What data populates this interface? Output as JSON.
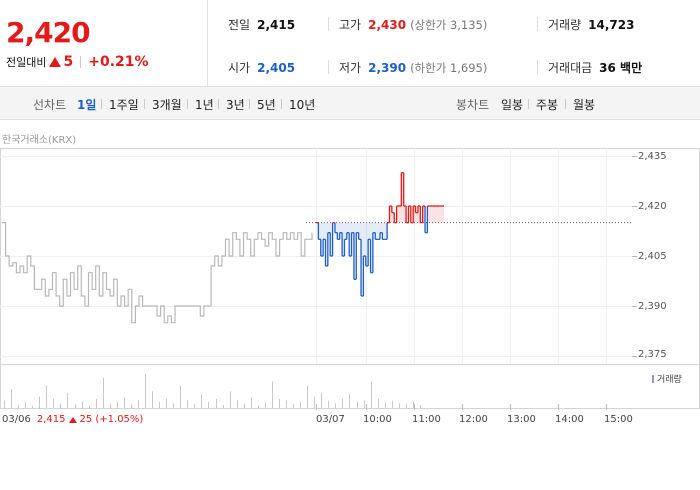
{
  "quote": {
    "price": "2,420",
    "change_label": "전일대비",
    "change_amount": "5",
    "change_pct": "+0.21%"
  },
  "stats": {
    "prev_label": "전일",
    "prev": "2,415",
    "high_label": "고가",
    "high": "2,430",
    "upper_limit": "(상한가 3,135)",
    "volume_label": "거래량",
    "volume": "14,723",
    "open_label": "시가",
    "open": "2,405",
    "low_label": "저가",
    "low": "2,390",
    "lower_limit": "(하한가 1,695)",
    "value_label": "거래대금",
    "value": "36 백만"
  },
  "tabs": {
    "line_head": "선차트",
    "line": [
      "1일",
      "1주일",
      "3개월",
      "1년",
      "3년",
      "5년",
      "10년"
    ],
    "candle_head": "봉차트",
    "candle": [
      "일봉",
      "주봉",
      "월봉"
    ]
  },
  "source": "한국거래소(KRX)",
  "legend": "거래량",
  "prev_day": {
    "date": "03/06",
    "price": "2,415",
    "change": "25 (+1.05%)"
  },
  "colors": {
    "up": "#e21a1a",
    "down": "#1e5fc9",
    "prev_line": "#b8b8b8",
    "volume": "#c8c8c8"
  },
  "chart_data": {
    "type": "line",
    "y_ticks": [
      "2,435",
      "2,420",
      "2,405",
      "2,390",
      "2,375"
    ],
    "ylim": [
      2375,
      2435
    ],
    "x_ticks": [
      "03/07",
      "10:00",
      "11:00",
      "12:00",
      "13:00",
      "14:00",
      "15:00"
    ],
    "reference_price": 2415,
    "series": [
      {
        "day": "03/06",
        "values": [
          2415,
          2405,
          2402,
          2403,
          2400,
          2402,
          2400,
          2405,
          2402,
          2395,
          2395,
          2398,
          2393,
          2395,
          2400,
          2393,
          2390,
          2398,
          2393,
          2400,
          2395,
          2402,
          2393,
          2390,
          2400,
          2395,
          2402,
          2393,
          2400,
          2395,
          2393,
          2398,
          2390,
          2393,
          2390,
          2395,
          2385,
          2390,
          2393,
          2390,
          2390,
          2390,
          2390,
          2387,
          2390,
          2385,
          2387,
          2385,
          2390,
          2390,
          2390,
          2390,
          2390,
          2390,
          2390,
          2387,
          2390,
          2390,
          2402,
          2405,
          2402,
          2405,
          2410,
          2405,
          2412,
          2410,
          2405,
          2412,
          2410,
          2405,
          2410,
          2412,
          2410,
          2408,
          2412,
          2410,
          2405,
          2410,
          2412,
          2410,
          2412,
          2410,
          2412,
          2405,
          2410,
          2410,
          2412
        ]
      },
      {
        "day": "03/07",
        "values": [
          2415,
          2410,
          2405,
          2410,
          2402,
          2412,
          2405,
          2415,
          2412,
          2410,
          2412,
          2405,
          2410,
          2412,
          2405,
          2412,
          2398,
          2412,
          2410,
          2393,
          2405,
          2402,
          2410,
          2400,
          2412,
          2410,
          2410,
          2412,
          2410,
          2410,
          2415,
          2420,
          2418,
          2415,
          2420,
          2420,
          2430,
          2420,
          2415,
          2420,
          2415,
          2420,
          2418,
          2420,
          2415,
          2420,
          2412,
          2420,
          2420,
          2420,
          2420,
          2420,
          2420,
          2420,
          2420
        ]
      }
    ],
    "volume": [
      10,
      25,
      4,
      8,
      3,
      15,
      30,
      12,
      6,
      20,
      5,
      9,
      3,
      12,
      40,
      6,
      8,
      14,
      5,
      10,
      45,
      22,
      8,
      12,
      6,
      30,
      10,
      5,
      18,
      8,
      12,
      4,
      22,
      10,
      6,
      14,
      3,
      8,
      35,
      12,
      10,
      5,
      8,
      30,
      15,
      20,
      10,
      6,
      12,
      18,
      8,
      10,
      35,
      12,
      8,
      10,
      6,
      5,
      8,
      4
    ]
  }
}
